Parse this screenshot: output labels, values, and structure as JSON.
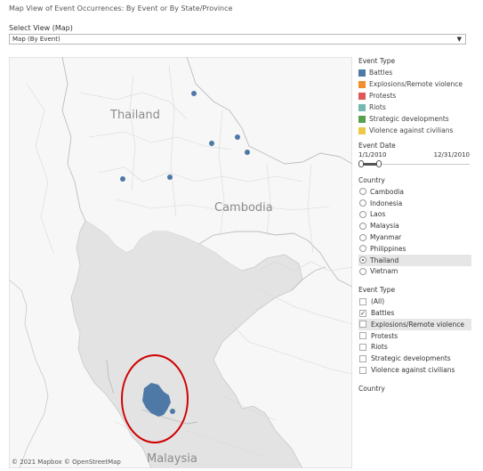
{
  "header": {
    "title": "Map View of Event Occurrences: By Event or By State/Province",
    "select_label": "Select View (Map)",
    "select_value": "Map (By Event)"
  },
  "map": {
    "labels": {
      "thailand": "Thailand",
      "cambodia": "Cambodia",
      "malaysia": "Malaysia"
    },
    "attribution": "© 2021 Mapbox  © OpenStreetMap",
    "marker_color": "#4e79a7",
    "annotation_color": "#d00000"
  },
  "legend": {
    "title": "Event Type",
    "items": [
      {
        "label": "Battles",
        "color": "#4e79a7"
      },
      {
        "label": "Explosions/Remote violence",
        "color": "#f28e2b"
      },
      {
        "label": "Protests",
        "color": "#e15759"
      },
      {
        "label": "Riots",
        "color": "#76b7b2"
      },
      {
        "label": "Strategic developments",
        "color": "#59a14f"
      },
      {
        "label": "Violence against civilians",
        "color": "#edc948"
      }
    ]
  },
  "date_filter": {
    "title": "Event Date",
    "start": "1/1/2010",
    "end": "12/31/2010"
  },
  "country_filter": {
    "title": "Country",
    "options": [
      {
        "label": "Cambodia",
        "selected": false
      },
      {
        "label": "Indonesia",
        "selected": false
      },
      {
        "label": "Laos",
        "selected": false
      },
      {
        "label": "Malaysia",
        "selected": false
      },
      {
        "label": "Myanmar",
        "selected": false
      },
      {
        "label": "Philippines",
        "selected": false
      },
      {
        "label": "Thailand",
        "selected": true
      },
      {
        "label": "Vietnam",
        "selected": false
      }
    ]
  },
  "event_filter": {
    "title": "Event Type",
    "options": [
      {
        "label": "(All)",
        "checked": false
      },
      {
        "label": "Battles",
        "checked": true
      },
      {
        "label": "Explosions/Remote violence",
        "checked": false
      },
      {
        "label": "Protests",
        "checked": false
      },
      {
        "label": "Riots",
        "checked": false
      },
      {
        "label": "Strategic developments",
        "checked": false
      },
      {
        "label": "Violence against civilians",
        "checked": false
      }
    ]
  },
  "country_footer": {
    "title": "Country"
  }
}
